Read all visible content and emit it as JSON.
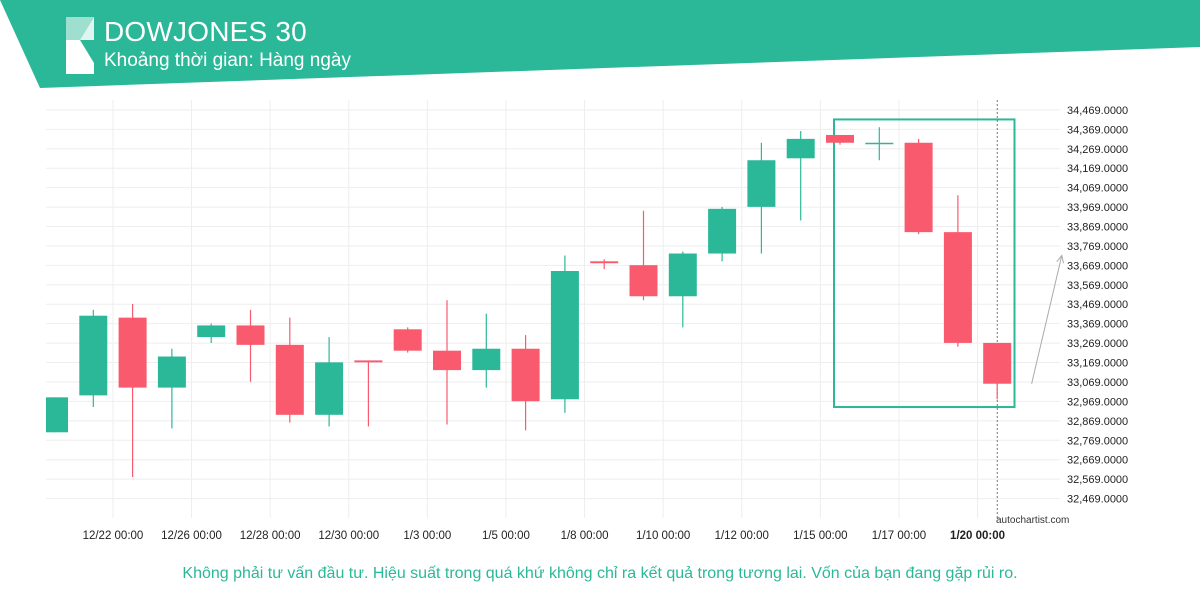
{
  "header": {
    "symbol": "DOWJONES 30",
    "timeframe": "Khoảng thời gian: Hàng ngày"
  },
  "footer": {
    "disclaimer": "Không phải tư vấn đầu tư. Hiệu suất trong quá khứ không chỉ ra kết quả trong tương lai. Vốn của bạn đang gặp rủi ro.",
    "watermark": "autochartist.com"
  },
  "colors": {
    "brand": "#2bb898",
    "up": "#2bb898",
    "down": "#fa5a6e"
  },
  "chart_data": {
    "type": "candlestick",
    "ylim": [
      32369.0,
      34520.0
    ],
    "yticks": [
      32469,
      32569,
      32669,
      32769,
      32869,
      32969,
      33069,
      33169,
      33269,
      33369,
      33469,
      33569,
      33669,
      33769,
      33869,
      33969,
      34069,
      34169,
      34269,
      34369,
      34469
    ],
    "ytick_labels": [
      "32,469.0000",
      "32,569.0000",
      "32,669.0000",
      "32,769.0000",
      "32,869.0000",
      "32,969.0000",
      "33,069.0000",
      "33,169.0000",
      "33,269.0000",
      "33,369.0000",
      "33,469.0000",
      "33,569.0000",
      "33,669.0000",
      "33,769.0000",
      "33,869.0000",
      "33,969.0000",
      "34,069.0000",
      "34,169.0000",
      "34,269.0000",
      "34,369.0000",
      "34,469.0000"
    ],
    "xtick_labels": [
      {
        "index": 1.5,
        "label": "12/22 00:00"
      },
      {
        "index": 3.5,
        "label": "12/26 00:00"
      },
      {
        "index": 5.5,
        "label": "12/28 00:00"
      },
      {
        "index": 7.5,
        "label": "12/30 00:00"
      },
      {
        "index": 9.5,
        "label": "1/3 00:00"
      },
      {
        "index": 11.5,
        "label": "1/5 00:00"
      },
      {
        "index": 13.5,
        "label": "1/8 00:00"
      },
      {
        "index": 15.5,
        "label": "1/10 00:00"
      },
      {
        "index": 17.5,
        "label": "1/12 00:00"
      },
      {
        "index": 19.5,
        "label": "1/15 00:00"
      },
      {
        "index": 21.5,
        "label": "1/17 00:00"
      },
      {
        "index": 23.5,
        "label": "1/20 00:00",
        "bold": true
      }
    ],
    "candles": [
      {
        "open": 32810,
        "high": 32990,
        "low": 32810,
        "close": 32990
      },
      {
        "open": 33000,
        "high": 33440,
        "low": 32940,
        "close": 33410
      },
      {
        "open": 33400,
        "high": 33470,
        "low": 32580,
        "close": 33040
      },
      {
        "open": 33040,
        "high": 33240,
        "low": 32830,
        "close": 33200
      },
      {
        "open": 33300,
        "high": 33370,
        "low": 33270,
        "close": 33360
      },
      {
        "open": 33360,
        "high": 33440,
        "low": 33070,
        "close": 33260
      },
      {
        "open": 33260,
        "high": 33400,
        "low": 32860,
        "close": 32900
      },
      {
        "open": 32900,
        "high": 33300,
        "low": 32840,
        "close": 33170
      },
      {
        "open": 33180,
        "high": 33180,
        "low": 32840,
        "close": 33170
      },
      {
        "open": 33340,
        "high": 33350,
        "low": 33220,
        "close": 33230
      },
      {
        "open": 33230,
        "high": 33490,
        "low": 32850,
        "close": 33130
      },
      {
        "open": 33130,
        "high": 33420,
        "low": 33040,
        "close": 33240
      },
      {
        "open": 33240,
        "high": 33310,
        "low": 32820,
        "close": 32970
      },
      {
        "open": 32980,
        "high": 33720,
        "low": 32910,
        "close": 33640
      },
      {
        "open": 33690,
        "high": 33700,
        "low": 33650,
        "close": 33680
      },
      {
        "open": 33670,
        "high": 33950,
        "low": 33490,
        "close": 33510
      },
      {
        "open": 33510,
        "high": 33740,
        "low": 33350,
        "close": 33730
      },
      {
        "open": 33730,
        "high": 33970,
        "low": 33690,
        "close": 33960
      },
      {
        "open": 33970,
        "high": 34300,
        "low": 33730,
        "close": 34210
      },
      {
        "open": 34220,
        "high": 34360,
        "low": 33900,
        "close": 34320
      },
      {
        "open": 34340,
        "high": 34340,
        "low": 34290,
        "close": 34300
      },
      {
        "open": 34300,
        "high": 34380,
        "low": 34210,
        "close": 34300
      },
      {
        "open": 34300,
        "high": 34320,
        "low": 33830,
        "close": 33840
      },
      {
        "open": 33840,
        "high": 34030,
        "low": 33250,
        "close": 33270
      },
      {
        "open": 33270,
        "high": 33270,
        "low": 32980,
        "close": 33060
      }
    ],
    "pattern_box": {
      "from_index": 20,
      "to_index": 25,
      "low": 32940,
      "high": 34420
    },
    "forecast_arrow": {
      "from_index": 24.8,
      "from_value": 33060,
      "to_index": 26,
      "to_value": 33720
    },
    "current_index": 24,
    "grid": true
  }
}
